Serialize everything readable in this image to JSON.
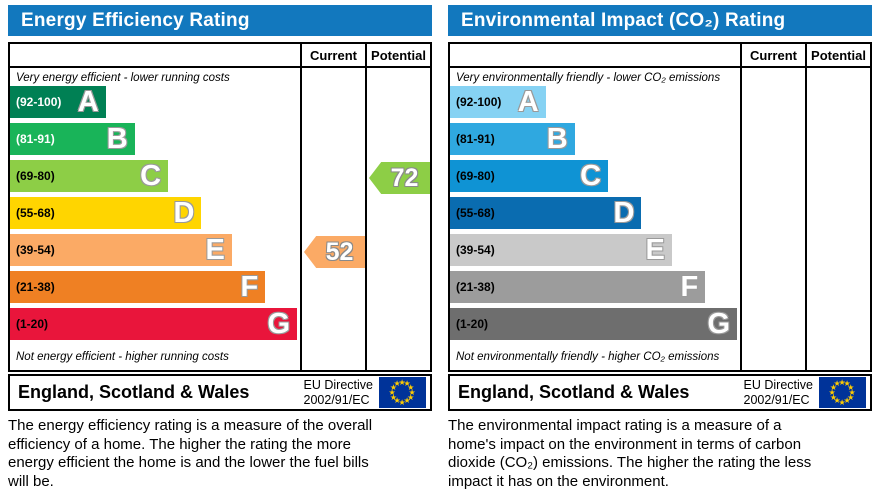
{
  "theme": {
    "header_bg": "#1278be",
    "header_text": "#ffffff",
    "table_border": "#000000",
    "flag_bg": "#003399",
    "flag_star": "#ffcc00",
    "letter_outline": "#9a9a9a"
  },
  "chart_data": [
    {
      "type": "bar",
      "title": "Energy Efficiency Rating",
      "columns": [
        "Current",
        "Potential"
      ],
      "top_note": "Very energy efficient - lower running costs",
      "bottom_note": "Not energy efficient - higher running costs",
      "axis_range": [
        1,
        100
      ],
      "bands": [
        {
          "grade": "A",
          "range_label": "(92-100)",
          "min": 92,
          "max": 100,
          "color": "#008054",
          "text_color": "#ffffff",
          "bar_width_pct": 33
        },
        {
          "grade": "B",
          "range_label": "(81-91)",
          "min": 81,
          "max": 91,
          "color": "#19b459",
          "text_color": "#ffffff",
          "bar_width_pct": 43
        },
        {
          "grade": "C",
          "range_label": "(69-80)",
          "min": 69,
          "max": 80,
          "color": "#8dce46",
          "text_color": "#000000",
          "bar_width_pct": 54.5
        },
        {
          "grade": "D",
          "range_label": "(55-68)",
          "min": 55,
          "max": 68,
          "color": "#ffd500",
          "text_color": "#000000",
          "bar_width_pct": 66
        },
        {
          "grade": "E",
          "range_label": "(39-54)",
          "min": 39,
          "max": 54,
          "color": "#fbaa65",
          "text_color": "#000000",
          "bar_width_pct": 76.5
        },
        {
          "grade": "F",
          "range_label": "(21-38)",
          "min": 21,
          "max": 38,
          "color": "#ef8023",
          "text_color": "#000000",
          "bar_width_pct": 88
        },
        {
          "grade": "G",
          "range_label": "(1-20)",
          "min": 1,
          "max": 20,
          "color": "#e9153b",
          "text_color": "#000000",
          "bar_width_pct": 99
        }
      ],
      "current": {
        "value": 52,
        "band": "E",
        "band_index": 4,
        "color": "#fbaa65"
      },
      "potential": {
        "value": 72,
        "band": "C",
        "band_index": 2,
        "color": "#8dce46"
      },
      "footer": {
        "region": "England, Scotland & Wales",
        "directive_line1": "EU Directive",
        "directive_line2": "2002/91/EC"
      },
      "description": "The energy efficiency rating is a measure of the overall efficiency of a home. The higher the rating the more energy efficient the home is and the lower the fuel bills will be."
    },
    {
      "type": "bar",
      "title": "Environmental Impact (CO₂) Rating",
      "columns": [
        "Current",
        "Potential"
      ],
      "top_note": "Very environmentally friendly - lower CO₂ emissions",
      "bottom_note": "Not environmentally friendly - higher CO₂ emissions",
      "axis_range": [
        1,
        100
      ],
      "bands": [
        {
          "grade": "A",
          "range_label": "(92-100)",
          "min": 92,
          "max": 100,
          "color": "#86d2f3",
          "text_color": "#000000",
          "bar_width_pct": 33
        },
        {
          "grade": "B",
          "range_label": "(81-91)",
          "min": 81,
          "max": 91,
          "color": "#2fa8e0",
          "text_color": "#000000",
          "bar_width_pct": 43
        },
        {
          "grade": "C",
          "range_label": "(69-80)",
          "min": 69,
          "max": 80,
          "color": "#0f93d4",
          "text_color": "#000000",
          "bar_width_pct": 54.5
        },
        {
          "grade": "D",
          "range_label": "(55-68)",
          "min": 55,
          "max": 68,
          "color": "#0a6cb0",
          "text_color": "#000000",
          "bar_width_pct": 66
        },
        {
          "grade": "E",
          "range_label": "(39-54)",
          "min": 39,
          "max": 54,
          "color": "#c9c9c9",
          "text_color": "#000000",
          "bar_width_pct": 76.5
        },
        {
          "grade": "F",
          "range_label": "(21-38)",
          "min": 21,
          "max": 38,
          "color": "#9c9c9c",
          "text_color": "#000000",
          "bar_width_pct": 88
        },
        {
          "grade": "G",
          "range_label": "(1-20)",
          "min": 1,
          "max": 20,
          "color": "#6e6e6e",
          "text_color": "#000000",
          "bar_width_pct": 99
        }
      ],
      "current": null,
      "potential": null,
      "footer": {
        "region": "England, Scotland & Wales",
        "directive_line1": "EU Directive",
        "directive_line2": "2002/91/EC"
      },
      "description": "The environmental impact rating is a measure of a home's impact on the environment in terms of carbon dioxide (CO₂) emissions. The higher the rating the less impact it has on the environment."
    }
  ]
}
